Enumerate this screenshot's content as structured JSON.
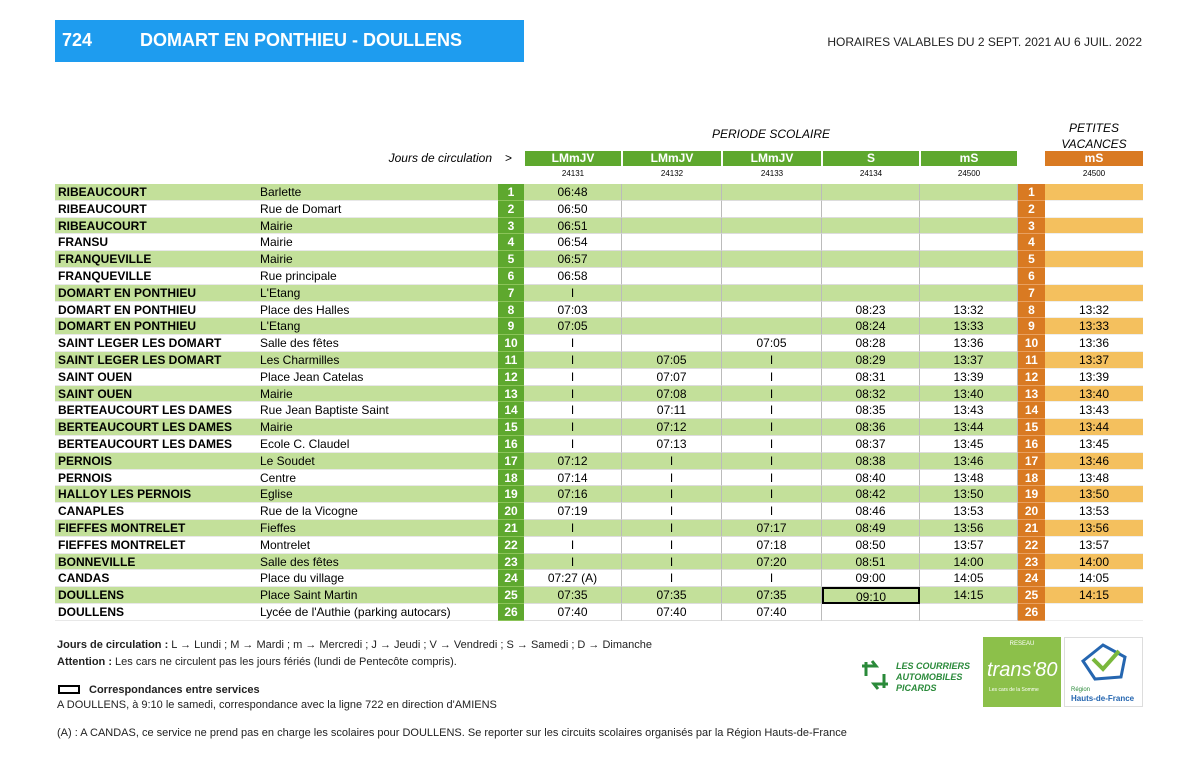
{
  "header": {
    "line": "724",
    "title": "DOMART EN PONTHIEU - DOULLENS",
    "validity": "HORAIRES VALABLES DU 2 SEPT. 2021 AU 6 JUIL. 2022"
  },
  "table": {
    "period_school": "PERIODE SCOLAIRE",
    "period_holiday": [
      "PETITES",
      "VACANCES"
    ],
    "days_label": "Jours de circulation",
    "days_arrow": ">",
    "columns": [
      {
        "days": "LMmJV",
        "code": "24131"
      },
      {
        "days": "LMmJV",
        "code": "24132"
      },
      {
        "days": "LMmJV",
        "code": "24133"
      },
      {
        "days": "S",
        "code": "24134"
      },
      {
        "days": "mS",
        "code": "24500"
      }
    ],
    "holiday_column": {
      "days": "mS",
      "code": "24500"
    },
    "rows": [
      {
        "town": "RIBEAUCOURT",
        "stop": "Barlette",
        "number": 1,
        "times": [
          "06:48",
          null,
          null,
          null,
          null
        ],
        "holiday": null
      },
      {
        "town": "RIBEAUCOURT",
        "stop": "Rue de Domart",
        "number": 2,
        "times": [
          "06:50",
          null,
          null,
          null,
          null
        ],
        "holiday": null
      },
      {
        "town": "RIBEAUCOURT",
        "stop": "Mairie",
        "number": 3,
        "times": [
          "06:51",
          null,
          null,
          null,
          null
        ],
        "holiday": null
      },
      {
        "town": "FRANSU",
        "stop": "Mairie",
        "number": 4,
        "times": [
          "06:54",
          null,
          null,
          null,
          null
        ],
        "holiday": null
      },
      {
        "town": "FRANQUEVILLE",
        "stop": "Mairie",
        "number": 5,
        "times": [
          "06:57",
          null,
          null,
          null,
          null
        ],
        "holiday": null
      },
      {
        "town": "FRANQUEVILLE",
        "stop": "Rue principale",
        "number": 6,
        "times": [
          "06:58",
          null,
          null,
          null,
          null
        ],
        "holiday": null
      },
      {
        "town": "DOMART EN PONTHIEU",
        "stop": "L'Etang",
        "number": 7,
        "times": [
          "I",
          null,
          null,
          null,
          null
        ],
        "holiday": null
      },
      {
        "town": "DOMART EN PONTHIEU",
        "stop": "Place des Halles",
        "number": 8,
        "times": [
          "07:03",
          null,
          null,
          "08:23",
          "13:32"
        ],
        "holiday": "13:32"
      },
      {
        "town": "DOMART EN PONTHIEU",
        "stop": "L'Etang",
        "number": 9,
        "times": [
          "07:05",
          null,
          null,
          "08:24",
          "13:33"
        ],
        "holiday": "13:33"
      },
      {
        "town": "SAINT LEGER LES DOMART",
        "stop": "Salle des fêtes",
        "number": 10,
        "times": [
          "I",
          null,
          "07:05",
          "08:28",
          "13:36"
        ],
        "holiday": "13:36"
      },
      {
        "town": "SAINT LEGER LES DOMART",
        "stop": "Les Charmilles",
        "number": 11,
        "times": [
          "I",
          "07:05",
          "I",
          "08:29",
          "13:37"
        ],
        "holiday": "13:37"
      },
      {
        "town": "SAINT OUEN",
        "stop": "Place Jean Catelas",
        "number": 12,
        "times": [
          "I",
          "07:07",
          "I",
          "08:31",
          "13:39"
        ],
        "holiday": "13:39"
      },
      {
        "town": "SAINT OUEN",
        "stop": "Mairie",
        "number": 13,
        "times": [
          "I",
          "07:08",
          "I",
          "08:32",
          "13:40"
        ],
        "holiday": "13:40"
      },
      {
        "town": "BERTEAUCOURT LES DAMES",
        "stop": "Rue Jean Baptiste Saint",
        "number": 14,
        "times": [
          "I",
          "07:11",
          "I",
          "08:35",
          "13:43"
        ],
        "holiday": "13:43"
      },
      {
        "town": "BERTEAUCOURT LES DAMES",
        "stop": "Mairie",
        "number": 15,
        "times": [
          "I",
          "07:12",
          "I",
          "08:36",
          "13:44"
        ],
        "holiday": "13:44"
      },
      {
        "town": "BERTEAUCOURT LES DAMES",
        "stop": "Ecole C. Claudel",
        "number": 16,
        "times": [
          "I",
          "07:13",
          "I",
          "08:37",
          "13:45"
        ],
        "holiday": "13:45"
      },
      {
        "town": "PERNOIS",
        "stop": "Le Soudet",
        "number": 17,
        "times": [
          "07:12",
          "I",
          "I",
          "08:38",
          "13:46"
        ],
        "holiday": "13:46"
      },
      {
        "town": "PERNOIS",
        "stop": "Centre",
        "number": 18,
        "times": [
          "07:14",
          "I",
          "I",
          "08:40",
          "13:48"
        ],
        "holiday": "13:48"
      },
      {
        "town": "HALLOY LES PERNOIS",
        "stop": "Eglise",
        "number": 19,
        "times": [
          "07:16",
          "I",
          "I",
          "08:42",
          "13:50"
        ],
        "holiday": "13:50"
      },
      {
        "town": "CANAPLES",
        "stop": "Rue de la Vicogne",
        "number": 20,
        "times": [
          "07:19",
          "I",
          "I",
          "08:46",
          "13:53"
        ],
        "holiday": "13:53"
      },
      {
        "town": "FIEFFES MONTRELET",
        "stop": "Fieffes",
        "number": 21,
        "times": [
          "I",
          "I",
          "07:17",
          "08:49",
          "13:56"
        ],
        "holiday": "13:56"
      },
      {
        "town": "FIEFFES MONTRELET",
        "stop": "Montrelet",
        "number": 22,
        "times": [
          "I",
          "I",
          "07:18",
          "08:50",
          "13:57"
        ],
        "holiday": "13:57"
      },
      {
        "town": "BONNEVILLE",
        "stop": "Salle des fêtes",
        "number": 23,
        "times": [
          "I",
          "I",
          "07:20",
          "08:51",
          "14:00"
        ],
        "holiday": "14:00"
      },
      {
        "town": "CANDAS",
        "stop": "Place du village",
        "number": 24,
        "times": [
          "07:27 (A)",
          "I",
          "I",
          "09:00",
          "14:05"
        ],
        "holiday": "14:05"
      },
      {
        "town": "DOULLENS",
        "stop": "Place Saint Martin",
        "number": 25,
        "times": [
          "07:35",
          "07:35",
          "07:35",
          "09:10",
          "14:15"
        ],
        "holiday": "14:15"
      },
      {
        "town": "DOULLENS",
        "stop": "Lycée de l'Authie (parking autocars)",
        "number": 26,
        "times": [
          "07:40",
          "07:40",
          "07:40",
          null,
          null
        ],
        "holiday": null
      }
    ]
  },
  "notes": {
    "days_title": "Jours de circulation :",
    "days_text": " L → Lundi ; M → Mardi ; m → Mercredi ; J → Jeudi ; V → Vendredi ; S → Samedi ; D → Dimanche",
    "warning_title": "Attention :",
    "warning_text": " Les cars ne circulent pas les jours fériés (lundi de Pentecôte compris).",
    "connection_title": "Correspondances entre services",
    "connection_text": "A DOULLENS, à 9:10 le samedi, correspondance avec la ligne 722 en direction d'AMIENS",
    "footnote": "(A) : A CANDAS, ce service ne prend pas en charge les scolaires pour DOULLENS. Se reporter sur les circuits scolaires organisés par la Région Hauts-de-France"
  },
  "logos": {
    "operator": [
      "LES COURRIERS",
      "AUTOMOBILES",
      "PICARDS"
    ],
    "network_label": "RESEAU",
    "network": "trans'80",
    "network_tagline": "Les cars de la Somme",
    "region": [
      "Région",
      "Hauts-de-France"
    ]
  }
}
